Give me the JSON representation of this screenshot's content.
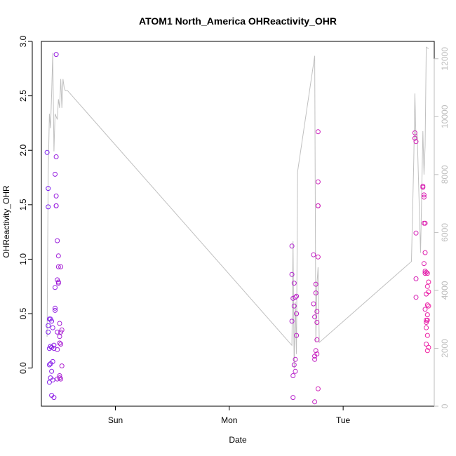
{
  "chart_data": {
    "type": "scatter",
    "title": "ATOM1 North_America OHReactivity_OHR",
    "xlabel": "Date",
    "ylabel": "OHReactivity_OHR",
    "x_ticks": [
      "Sun",
      "Mon",
      "Tue"
    ],
    "x_tick_positions_days": [
      1.0,
      2.0,
      3.0
    ],
    "x_range_days": [
      0.35,
      3.8
    ],
    "ylim": [
      -0.35,
      3.0
    ],
    "y_ticks": [
      0.0,
      0.5,
      1.0,
      1.5,
      2.0,
      2.5,
      3.0
    ],
    "y2_ticks": [
      0,
      2000,
      4000,
      6000,
      8000,
      10000,
      12000
    ],
    "y2lim": [
      0,
      12600
    ],
    "point_color_start": "#7b1ff2",
    "point_color_end": "#f21fa0",
    "line_color": "#c0c0c0",
    "grid": false,
    "series": [
      {
        "type": "scatter",
        "points": [
          [
            0.4,
            1.98
          ],
          [
            0.41,
            1.65
          ],
          [
            0.41,
            1.48
          ],
          [
            0.41,
            0.39
          ],
          [
            0.41,
            0.33
          ],
          [
            0.42,
            0.45
          ],
          [
            0.42,
            0.18
          ],
          [
            0.42,
            0.03
          ],
          [
            0.42,
            -0.13
          ],
          [
            0.43,
            0.45
          ],
          [
            0.43,
            0.2
          ],
          [
            0.43,
            0.04
          ],
          [
            0.43,
            -0.09
          ],
          [
            0.44,
            -0.25
          ],
          [
            0.44,
            0.43
          ],
          [
            0.44,
            0.19
          ],
          [
            0.44,
            -0.03
          ],
          [
            0.45,
            0.06
          ],
          [
            0.45,
            -0.11
          ],
          [
            0.45,
            0.37
          ],
          [
            0.46,
            0.21
          ],
          [
            0.46,
            0.18
          ],
          [
            0.46,
            -0.27
          ],
          [
            0.47,
            0.55
          ],
          [
            0.47,
            0.53
          ],
          [
            0.47,
            0.74
          ],
          [
            0.47,
            1.78
          ],
          [
            0.48,
            2.88
          ],
          [
            0.48,
            1.94
          ],
          [
            0.48,
            1.58
          ],
          [
            0.48,
            1.49
          ],
          [
            0.48,
            1.49
          ],
          [
            0.49,
            1.17
          ],
          [
            0.49,
            0.81
          ],
          [
            0.49,
            0.33
          ],
          [
            0.49,
            0.17
          ],
          [
            0.49,
            -0.1
          ],
          [
            0.5,
            1.03
          ],
          [
            0.5,
            0.93
          ],
          [
            0.5,
            0.79
          ],
          [
            0.5,
            0.78
          ],
          [
            0.51,
            0.41
          ],
          [
            0.51,
            0.29
          ],
          [
            0.51,
            0.23
          ],
          [
            0.51,
            -0.07
          ],
          [
            0.51,
            -0.09
          ],
          [
            0.52,
            0.93
          ],
          [
            0.52,
            0.33
          ],
          [
            0.52,
            0.22
          ],
          [
            0.52,
            -0.1
          ],
          [
            0.53,
            0.35
          ],
          [
            0.53,
            0.02
          ],
          [
            2.55,
            1.12
          ],
          [
            2.55,
            0.86
          ],
          [
            2.55,
            0.43
          ],
          [
            2.56,
            0.64
          ],
          [
            2.56,
            -0.07
          ],
          [
            2.56,
            -0.27
          ],
          [
            2.57,
            0.78
          ],
          [
            2.57,
            0.57
          ],
          [
            2.57,
            0.03
          ],
          [
            2.58,
            0.65
          ],
          [
            2.58,
            0.08
          ],
          [
            2.58,
            -0.03
          ],
          [
            2.59,
            0.66
          ],
          [
            2.59,
            0.5
          ],
          [
            2.59,
            0.3
          ],
          [
            2.74,
            1.04
          ],
          [
            2.74,
            0.59
          ],
          [
            2.75,
            0.47
          ],
          [
            2.75,
            0.08
          ],
          [
            2.75,
            0.11
          ],
          [
            2.75,
            -0.31
          ],
          [
            2.76,
            0.77
          ],
          [
            2.76,
            0.69
          ],
          [
            2.76,
            0.16
          ],
          [
            2.77,
            0.52
          ],
          [
            2.77,
            0.42
          ],
          [
            2.77,
            0.26
          ],
          [
            2.77,
            0.13
          ],
          [
            2.78,
            2.17
          ],
          [
            2.78,
            1.71
          ],
          [
            2.78,
            1.49
          ],
          [
            2.78,
            1.49
          ],
          [
            2.78,
            1.02
          ],
          [
            2.78,
            -0.19
          ],
          [
            3.63,
            2.16
          ],
          [
            3.63,
            2.11
          ],
          [
            3.64,
            2.08
          ],
          [
            3.64,
            1.24
          ],
          [
            3.64,
            0.82
          ],
          [
            3.64,
            0.65
          ],
          [
            3.7,
            1.67
          ],
          [
            3.7,
            1.66
          ],
          [
            3.71,
            1.59
          ],
          [
            3.71,
            1.57
          ],
          [
            3.71,
            1.33
          ],
          [
            3.71,
            0.96
          ],
          [
            3.72,
            1.33
          ],
          [
            3.72,
            1.06
          ],
          [
            3.72,
            0.89
          ],
          [
            3.72,
            0.87
          ],
          [
            3.72,
            0.54
          ],
          [
            3.73,
            0.88
          ],
          [
            3.73,
            0.68
          ],
          [
            3.73,
            0.44
          ],
          [
            3.73,
            0.42
          ],
          [
            3.73,
            0.37
          ],
          [
            3.73,
            0.22
          ],
          [
            3.74,
            0.87
          ],
          [
            3.74,
            0.75
          ],
          [
            3.74,
            0.58
          ],
          [
            3.74,
            0.49
          ],
          [
            3.74,
            0.44
          ],
          [
            3.74,
            0.3
          ],
          [
            3.75,
            0.79
          ],
          [
            3.75,
            0.7
          ],
          [
            3.75,
            0.57
          ],
          [
            3.75,
            0.19
          ],
          [
            3.74,
            0.16
          ]
        ]
      },
      {
        "type": "line",
        "axis": "right",
        "points": [
          [
            0.4,
            2400
          ],
          [
            0.41,
            8000
          ],
          [
            0.42,
            10100
          ],
          [
            0.43,
            9600
          ],
          [
            0.44,
            10800
          ],
          [
            0.45,
            12200
          ],
          [
            0.46,
            8800
          ],
          [
            0.47,
            10100
          ],
          [
            0.49,
            9900
          ],
          [
            0.5,
            10600
          ],
          [
            0.51,
            10300
          ],
          [
            0.52,
            11300
          ],
          [
            0.53,
            10300
          ],
          [
            0.54,
            11300
          ],
          [
            0.55,
            11000
          ],
          [
            0.56,
            10900
          ],
          [
            0.57,
            10900
          ],
          [
            0.58,
            10900
          ],
          [
            2.55,
            2100
          ],
          [
            2.56,
            5700
          ],
          [
            2.57,
            1300
          ],
          [
            2.58,
            3600
          ],
          [
            2.59,
            1800
          ],
          [
            2.6,
            8100
          ],
          [
            2.75,
            12100
          ],
          [
            2.76,
            2200
          ],
          [
            2.77,
            4200
          ],
          [
            2.78,
            4800
          ],
          [
            2.79,
            2200
          ],
          [
            3.6,
            5000
          ],
          [
            3.62,
            8500
          ],
          [
            3.63,
            10800
          ],
          [
            3.64,
            9200
          ],
          [
            3.65,
            9400
          ],
          [
            3.68,
            5300
          ],
          [
            3.7,
            9500
          ],
          [
            3.71,
            8000
          ],
          [
            3.72,
            9000
          ],
          [
            3.73,
            12400
          ],
          [
            3.75,
            12350
          ]
        ]
      }
    ]
  }
}
